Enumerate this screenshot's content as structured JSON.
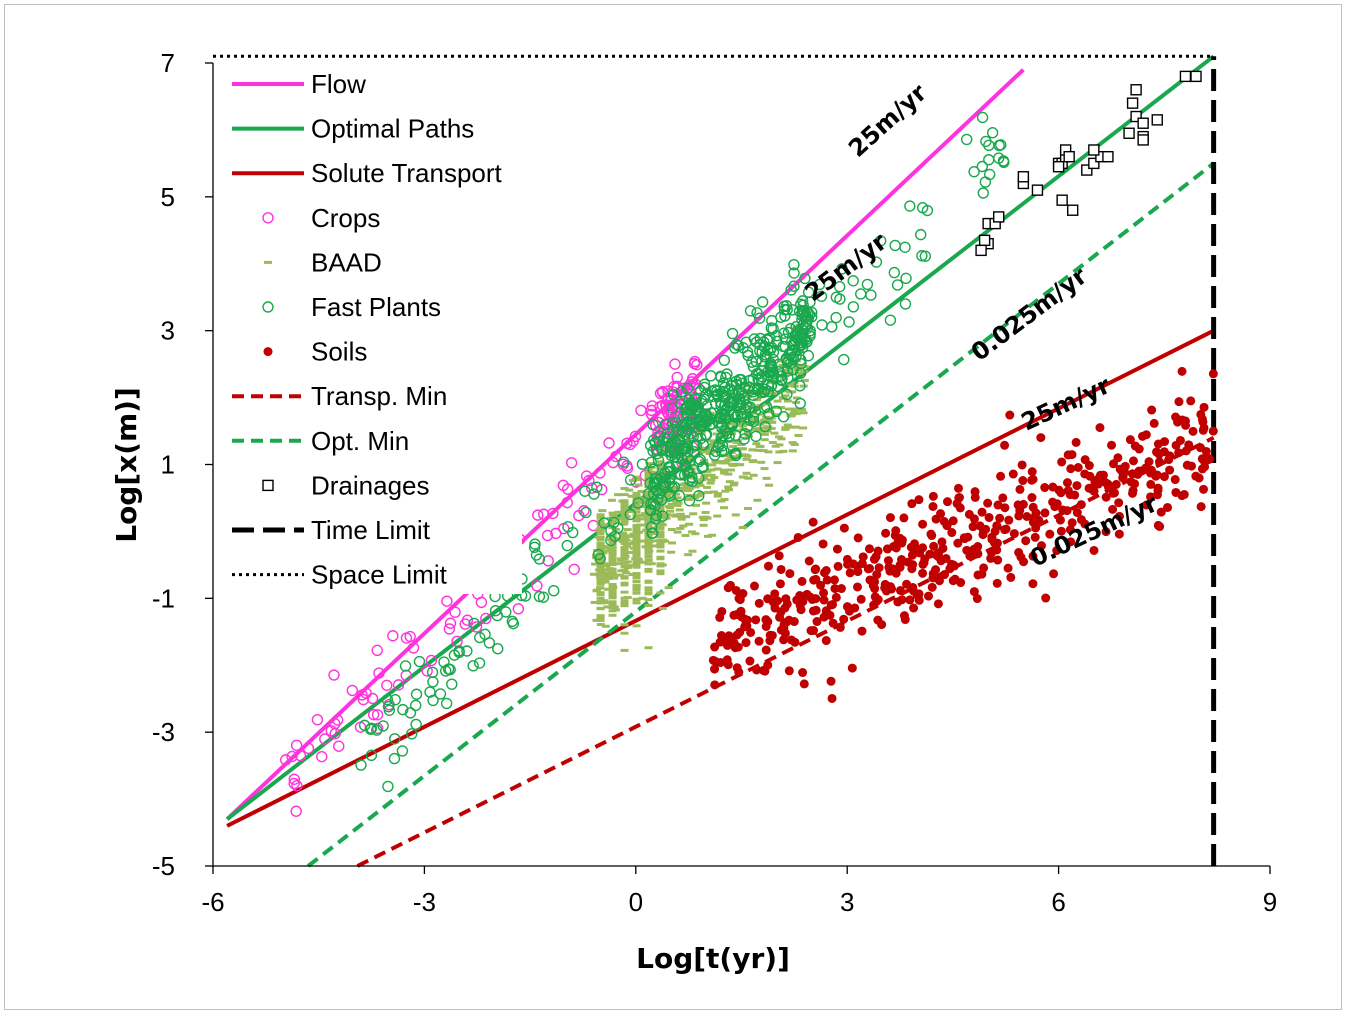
{
  "chart_data": {
    "type": "scatter",
    "xlabel": "Log[t(yr)]",
    "ylabel": "Log[x(m)]",
    "xlim": [
      -6,
      9
    ],
    "ylim": [
      -5,
      7
    ],
    "xticks": [
      "-6",
      "-3",
      "0",
      "3",
      "6",
      "9"
    ],
    "yticks": [
      "7",
      "5",
      "3",
      "1",
      "-1",
      "-3",
      "-5"
    ],
    "legend_position": "top-left",
    "colors": {
      "flow": "#ff33dd",
      "optimal": "#1aa84e",
      "solute": "#c00000",
      "baad": "#9bbb59",
      "black": "#000000"
    },
    "lines": [
      {
        "name": "Flow",
        "x": [
          -5.8,
          5.5
        ],
        "y": [
          -4.3,
          6.9
        ],
        "style": "solid",
        "color": "#ff33dd"
      },
      {
        "name": "Optimal Paths",
        "x": [
          -5.8,
          8.2
        ],
        "y": [
          -4.3,
          7.1
        ],
        "style": "solid",
        "color": "#1aa84e"
      },
      {
        "name": "Solute Transport",
        "x": [
          -5.8,
          8.2
        ],
        "y": [
          -4.4,
          3.0
        ],
        "style": "solid",
        "color": "#c00000"
      },
      {
        "name": "Transp. Min",
        "x": [
          -3.95,
          8.2
        ],
        "y": [
          -5.0,
          1.4
        ],
        "style": "dashed",
        "color": "#c00000"
      },
      {
        "name": "Opt. Min",
        "x": [
          -4.65,
          8.2
        ],
        "y": [
          -5.0,
          5.5
        ],
        "style": "dashed",
        "color": "#1aa84e"
      },
      {
        "name": "Time Limit",
        "x": [
          8.2,
          8.2
        ],
        "y": [
          -5.0,
          7.1
        ],
        "style": "longdash",
        "color": "#000000"
      },
      {
        "name": "Space Limit",
        "x": [
          -6.0,
          8.2
        ],
        "y": [
          7.1,
          7.1
        ],
        "style": "dotted",
        "color": "#000000"
      }
    ],
    "scatter": [
      {
        "name": "Crops",
        "marker": "open-circle",
        "color": "#ff33dd",
        "count": 200,
        "x_range": [
          -5.0,
          0.9
        ],
        "trend": {
          "slope": 0.97,
          "intercept": 1.2
        },
        "spread": 0.35
      },
      {
        "name": "BAAD",
        "marker": "dash",
        "color": "#9bbb59",
        "count": 1000,
        "x_range": [
          -0.6,
          2.4
        ],
        "trend": {
          "slope": 0.95,
          "intercept": -0.1
        },
        "spread": 0.45
      },
      {
        "name": "Fast Plants",
        "marker": "open-circle",
        "color": "#1aa84e",
        "count": 600,
        "x_range": [
          -4.0,
          5.3
        ],
        "trend": {
          "slope": 0.99,
          "intercept": 0.6
        },
        "spread": 0.4
      },
      {
        "name": "Soils",
        "marker": "filled-dot",
        "color": "#c00000",
        "count": 500,
        "x_range": [
          1.1,
          8.2
        ],
        "trend": {
          "slope": 0.44,
          "intercept": -2.2
        },
        "spread": 0.45
      },
      {
        "name": "Drainages",
        "marker": "open-square",
        "color": "#000000",
        "x": [
          5.0,
          5.0,
          5.1,
          5.15,
          4.95,
          4.9,
          5.5,
          5.5,
          5.7,
          6.0,
          6.05,
          6.1,
          6.1,
          6.2,
          6.05,
          6.15,
          6.4,
          6.5,
          6.6,
          6.5,
          6.7,
          7.0,
          7.1,
          7.05,
          7.2,
          7.2,
          7.4,
          7.1,
          7.2,
          7.8,
          7.95,
          6.0
        ],
        "y": [
          4.6,
          4.3,
          4.6,
          4.7,
          4.35,
          4.2,
          5.2,
          5.3,
          5.1,
          5.5,
          5.5,
          5.6,
          5.7,
          4.8,
          4.95,
          5.6,
          5.4,
          5.5,
          5.6,
          5.7,
          5.6,
          5.95,
          6.2,
          6.4,
          6.1,
          5.9,
          6.15,
          6.6,
          5.85,
          6.8,
          6.8,
          5.45
        ]
      }
    ],
    "annotations": [
      {
        "text": "25m/yr",
        "x": 3.65,
        "y": 6.05,
        "angle": -42
      },
      {
        "text": "25m/yr",
        "x": 3.05,
        "y": 3.85,
        "angle": -37
      },
      {
        "text": "0.025m/yr",
        "x": 5.65,
        "y": 3.15,
        "angle": -37
      },
      {
        "text": "25m/yr",
        "x": 6.15,
        "y": 1.8,
        "angle": -25
      },
      {
        "text": "0.025m/yr",
        "x": 6.55,
        "y": -0.1,
        "angle": -25
      }
    ]
  },
  "legend": [
    {
      "label": "Flow",
      "kind": "line",
      "color": "#ff33dd"
    },
    {
      "label": "Optimal Paths",
      "kind": "line",
      "color": "#1aa84e"
    },
    {
      "label": "Solute Transport",
      "kind": "line",
      "color": "#c00000"
    },
    {
      "label": "Crops",
      "kind": "open-circle",
      "color": "#ff33dd"
    },
    {
      "label": "BAAD",
      "kind": "dash",
      "color": "#9bbb59"
    },
    {
      "label": "Fast Plants",
      "kind": "open-circle",
      "color": "#1aa84e"
    },
    {
      "label": "Soils",
      "kind": "filled-dot",
      "color": "#c00000"
    },
    {
      "label": "Transp. Min",
      "kind": "dashed",
      "color": "#c00000"
    },
    {
      "label": "Opt. Min",
      "kind": "dashed",
      "color": "#1aa84e"
    },
    {
      "label": "Drainages",
      "kind": "open-square",
      "color": "#000000"
    },
    {
      "label": "Time Limit",
      "kind": "longdash",
      "color": "#000000"
    },
    {
      "label": "Space Limit",
      "kind": "dotted",
      "color": "#000000"
    }
  ]
}
